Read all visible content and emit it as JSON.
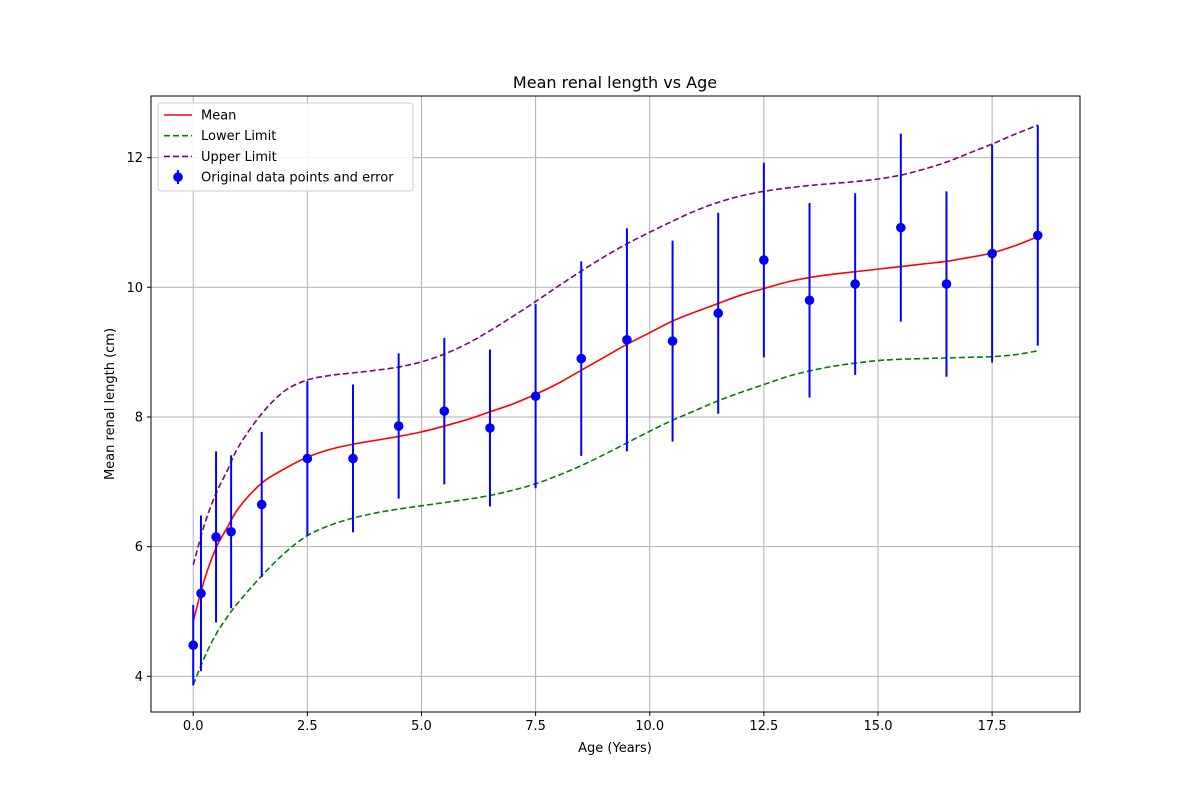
{
  "chart_data": {
    "type": "line",
    "title": "Mean renal length vs Age",
    "xlabel": "Age (Years)",
    "ylabel": "Mean renal length (cm)",
    "xlim": [
      -0.925,
      19.425
    ],
    "ylim": [
      3.45,
      12.95
    ],
    "x_ticks": [
      0.0,
      2.5,
      5.0,
      7.5,
      10.0,
      12.5,
      15.0,
      17.5
    ],
    "x_tick_labels": [
      "0.0",
      "2.5",
      "5.0",
      "7.5",
      "10.0",
      "12.5",
      "15.0",
      "17.5"
    ],
    "y_ticks": [
      4,
      6,
      8,
      10,
      12
    ],
    "y_tick_labels": [
      "4",
      "6",
      "8",
      "10",
      "12"
    ],
    "grid": true,
    "legend_position": "top-left",
    "series": [
      {
        "name": "Mean",
        "kind": "line",
        "style": "solid",
        "color": "#ff0000",
        "x": [
          0,
          0.25,
          0.5,
          0.75,
          1.0,
          1.5,
          2.0,
          2.5,
          3.0,
          3.5,
          4.0,
          4.5,
          5.0,
          5.5,
          6.0,
          6.5,
          7.0,
          7.5,
          8.0,
          8.5,
          9.0,
          9.5,
          10.0,
          10.5,
          11.0,
          11.5,
          12.0,
          12.5,
          13.0,
          13.5,
          14.0,
          14.5,
          15.0,
          15.5,
          16.0,
          16.5,
          17.0,
          17.5,
          18.0,
          18.5
        ],
        "y": [
          4.85,
          5.5,
          5.98,
          6.3,
          6.6,
          6.98,
          7.2,
          7.38,
          7.5,
          7.58,
          7.64,
          7.7,
          7.77,
          7.86,
          7.96,
          8.08,
          8.2,
          8.35,
          8.52,
          8.72,
          8.92,
          9.12,
          9.3,
          9.48,
          9.62,
          9.75,
          9.88,
          9.98,
          10.08,
          10.15,
          10.2,
          10.24,
          10.28,
          10.32,
          10.36,
          10.4,
          10.46,
          10.53,
          10.64,
          10.78
        ]
      },
      {
        "name": "Lower Limit",
        "kind": "line",
        "style": "dashed",
        "color": "#008000",
        "x": [
          0,
          0.25,
          0.5,
          0.75,
          1.0,
          1.5,
          2.0,
          2.5,
          3.0,
          3.5,
          4.0,
          4.5,
          5.0,
          5.5,
          6.0,
          6.5,
          7.0,
          7.5,
          8.0,
          8.5,
          9.0,
          9.5,
          10.0,
          10.5,
          11.0,
          11.5,
          12.0,
          12.5,
          13.0,
          13.5,
          14.0,
          14.5,
          15.0,
          15.5,
          16.0,
          16.5,
          17.0,
          17.5,
          18.0,
          18.5
        ],
        "y": [
          3.87,
          4.3,
          4.65,
          4.92,
          5.15,
          5.55,
          5.9,
          6.17,
          6.33,
          6.44,
          6.52,
          6.58,
          6.63,
          6.68,
          6.73,
          6.79,
          6.87,
          6.97,
          7.1,
          7.25,
          7.42,
          7.6,
          7.78,
          7.95,
          8.1,
          8.25,
          8.38,
          8.5,
          8.62,
          8.71,
          8.78,
          8.83,
          8.87,
          8.89,
          8.9,
          8.91,
          8.92,
          8.93,
          8.96,
          9.02
        ]
      },
      {
        "name": "Upper Limit",
        "kind": "line",
        "style": "dashed",
        "color": "#800080",
        "x": [
          0,
          0.25,
          0.5,
          0.75,
          1.0,
          1.5,
          2.0,
          2.5,
          3.0,
          3.5,
          4.0,
          4.5,
          5.0,
          5.5,
          6.0,
          6.5,
          7.0,
          7.5,
          8.0,
          8.5,
          9.0,
          9.5,
          10.0,
          10.5,
          11.0,
          11.5,
          12.0,
          12.5,
          13.0,
          13.5,
          14.0,
          14.5,
          15.0,
          15.5,
          16.0,
          16.5,
          17.0,
          17.5,
          18.0,
          18.5
        ],
        "y": [
          5.72,
          6.35,
          6.82,
          7.18,
          7.55,
          8.05,
          8.4,
          8.57,
          8.64,
          8.68,
          8.72,
          8.77,
          8.85,
          8.97,
          9.13,
          9.33,
          9.55,
          9.78,
          10.02,
          10.25,
          10.47,
          10.67,
          10.85,
          11.02,
          11.18,
          11.31,
          11.41,
          11.48,
          11.53,
          11.57,
          11.6,
          11.63,
          11.67,
          11.73,
          11.82,
          11.93,
          12.07,
          12.21,
          12.36,
          12.5
        ]
      },
      {
        "name": "Original data points and error",
        "kind": "errorbar",
        "color": "#0000ff",
        "x": [
          0.0,
          0.17,
          0.5,
          0.83,
          1.5,
          2.5,
          3.5,
          4.5,
          5.5,
          6.5,
          7.5,
          8.5,
          9.5,
          10.5,
          11.5,
          12.5,
          13.5,
          14.5,
          15.5,
          16.5,
          17.5,
          18.5
        ],
        "y": [
          4.48,
          5.28,
          6.15,
          6.23,
          6.65,
          7.36,
          7.36,
          7.86,
          8.09,
          7.83,
          8.32,
          8.9,
          9.19,
          9.17,
          9.6,
          10.42,
          9.8,
          10.05,
          10.92,
          10.05,
          10.52,
          10.8
        ],
        "err": [
          0.62,
          1.2,
          1.32,
          1.18,
          1.12,
          1.19,
          1.14,
          1.12,
          1.13,
          1.21,
          1.42,
          1.5,
          1.72,
          1.55,
          1.55,
          1.5,
          1.5,
          1.4,
          1.45,
          1.43,
          1.68,
          1.7
        ]
      }
    ]
  }
}
